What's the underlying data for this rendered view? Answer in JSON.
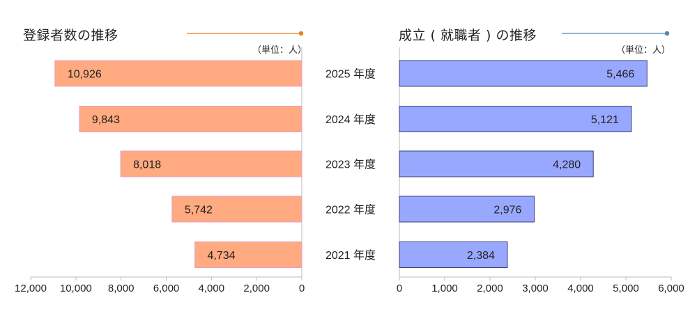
{
  "chart_data": [
    {
      "type": "bar",
      "orientation": "horizontal",
      "title": "登録者数の推移",
      "unit": "（単位：人）",
      "categories": [
        "2025 年度",
        "2024 年度",
        "2023 年度",
        "2022 年度",
        "2021 年度"
      ],
      "values": [
        10926,
        9843,
        8018,
        5742,
        4734
      ],
      "value_labels": [
        "10,926",
        "9,843",
        "8,018",
        "5,742",
        "4,734"
      ],
      "xlim": [
        0,
        12000
      ],
      "xticks": [
        "0",
        "2,000",
        "4,000",
        "6,000",
        "8,000",
        "10,000",
        "12,000"
      ],
      "x_reversed": true,
      "grid": false,
      "bar_color": "#ffaa80",
      "bar_edge": "#e8a0c0",
      "accent_color": "#e87e1e"
    },
    {
      "type": "bar",
      "orientation": "horizontal",
      "title": "成立 ( 就職者 ) の推移",
      "unit": "（単位：人）",
      "categories": [
        "2025 年度",
        "2024 年度",
        "2023 年度",
        "2022 年度",
        "2021 年度"
      ],
      "values": [
        5466,
        5121,
        4280,
        2976,
        2384
      ],
      "value_labels": [
        "5,466",
        "5,121",
        "4,280",
        "2,976",
        "2,384"
      ],
      "xlim": [
        0,
        6000
      ],
      "xticks": [
        "0",
        "1,000",
        "2,000",
        "3,000",
        "4,000",
        "5,000",
        "6,000"
      ],
      "x_reversed": false,
      "grid": false,
      "bar_color": "#99a8ff",
      "bar_edge": "#3a3f7a",
      "accent_color": "#4a86b8"
    }
  ]
}
